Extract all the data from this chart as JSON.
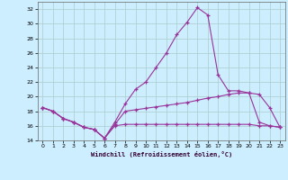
{
  "background_color": "#cceeff",
  "grid_color": "#aacccc",
  "line_color": "#993399",
  "marker": "+",
  "xlabel": "Windchill (Refroidissement éolien,°C)",
  "xlim": [
    -0.5,
    23.5
  ],
  "ylim": [
    14,
    33
  ],
  "yticks": [
    14,
    16,
    18,
    20,
    22,
    24,
    26,
    28,
    30,
    32
  ],
  "xticks": [
    0,
    1,
    2,
    3,
    4,
    5,
    6,
    7,
    8,
    9,
    10,
    11,
    12,
    13,
    14,
    15,
    16,
    17,
    18,
    19,
    20,
    21,
    22,
    23
  ],
  "curve1_x": [
    0,
    1,
    2,
    3,
    4,
    5,
    6,
    7,
    8,
    9,
    10,
    11,
    12,
    13,
    14,
    15,
    16,
    17,
    18,
    19,
    20,
    21,
    22,
    23
  ],
  "curve1_y": [
    18.5,
    18.0,
    17.0,
    16.5,
    15.8,
    15.5,
    14.3,
    16.5,
    19.0,
    21.0,
    22.0,
    24.0,
    26.0,
    28.5,
    30.2,
    32.2,
    31.2,
    23.0,
    20.8,
    20.8,
    20.5,
    20.3,
    18.5,
    15.8
  ],
  "curve2_x": [
    0,
    1,
    2,
    3,
    4,
    5,
    6,
    7,
    8,
    9,
    10,
    11,
    12,
    13,
    14,
    15,
    16,
    17,
    18,
    19,
    20,
    21,
    22,
    23
  ],
  "curve2_y": [
    18.5,
    18.0,
    17.0,
    16.5,
    15.8,
    15.5,
    14.3,
    16.2,
    18.0,
    18.2,
    18.4,
    18.6,
    18.8,
    19.0,
    19.2,
    19.5,
    19.8,
    20.0,
    20.3,
    20.5,
    20.5,
    16.5,
    16.0,
    15.8
  ],
  "curve3_x": [
    0,
    1,
    2,
    3,
    4,
    5,
    6,
    7,
    8,
    9,
    10,
    11,
    12,
    13,
    14,
    15,
    16,
    17,
    18,
    19,
    20,
    21,
    22,
    23
  ],
  "curve3_y": [
    18.5,
    18.0,
    17.0,
    16.5,
    15.8,
    15.5,
    14.3,
    16.0,
    16.2,
    16.2,
    16.2,
    16.2,
    16.2,
    16.2,
    16.2,
    16.2,
    16.2,
    16.2,
    16.2,
    16.2,
    16.2,
    16.0,
    16.0,
    15.8
  ]
}
